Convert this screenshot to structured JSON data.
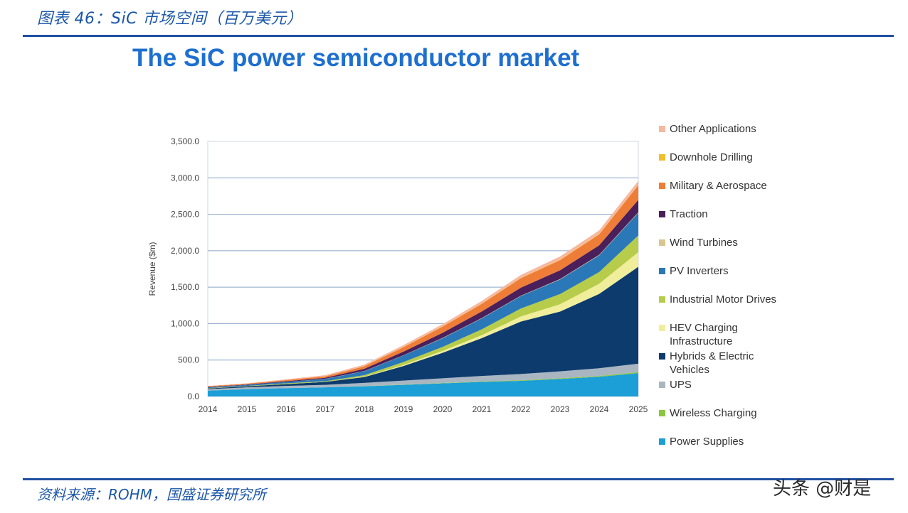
{
  "caption": "图表 46：SiC 市场空间（百万美元）",
  "source": "资料来源：ROHM，国盛证券研究所",
  "watermark": "头条 @财是",
  "chart_data": {
    "type": "area",
    "stacked": true,
    "title": "The SiC power semiconductor market",
    "xlabel": "",
    "ylabel": "Revenue ($m)",
    "x": [
      "2014",
      "2015",
      "2016",
      "2017",
      "2018",
      "2019",
      "2020",
      "2021",
      "2022",
      "2023",
      "2024",
      "2025"
    ],
    "ylim": [
      0,
      3500
    ],
    "yticks": [
      "0.0",
      "500.0",
      "1,000.0",
      "1,500.0",
      "2,000.0",
      "2,500.0",
      "3,000.0",
      "3,500.0"
    ],
    "grid": "horizontal",
    "legend_position": "right",
    "series": [
      {
        "name": "Power Supplies",
        "color": "#1b9fd6",
        "values": [
          80,
          100,
          115,
          125,
          140,
          160,
          180,
          200,
          215,
          240,
          270,
          320
        ]
      },
      {
        "name": "Wireless Charging",
        "color": "#8dc63f",
        "values": [
          0,
          0,
          0,
          0,
          2,
          3,
          5,
          6,
          8,
          10,
          12,
          15
        ]
      },
      {
        "name": "UPS",
        "color": "#a9b6c2",
        "values": [
          20,
          25,
          30,
          35,
          45,
          55,
          65,
          75,
          85,
          95,
          105,
          115
        ]
      },
      {
        "name": "Hybrids & Electric Vehicles",
        "color": "#0d3b6e",
        "values": [
          10,
          15,
          25,
          40,
          80,
          200,
          350,
          520,
          720,
          820,
          1020,
          1330
        ]
      },
      {
        "name": "HEV Charging Infrastructure",
        "color": "#f0ee9a",
        "values": [
          0,
          0,
          0,
          0,
          5,
          15,
          25,
          40,
          70,
          100,
          140,
          200
        ]
      },
      {
        "name": "Industrial Motor Drives",
        "color": "#b7cc4a",
        "values": [
          5,
          5,
          10,
          10,
          20,
          40,
          55,
          80,
          110,
          140,
          160,
          230
        ]
      },
      {
        "name": "PV Inverters",
        "color": "#2a78b8",
        "values": [
          10,
          15,
          20,
          30,
          55,
          90,
          120,
          150,
          170,
          200,
          230,
          310
        ]
      },
      {
        "name": "Wind Turbines",
        "color": "#d8c690",
        "values": [
          0,
          0,
          0,
          2,
          3,
          3,
          4,
          5,
          5,
          6,
          7,
          8
        ]
      },
      {
        "name": "Traction",
        "color": "#4a1f5a",
        "values": [
          5,
          5,
          10,
          15,
          30,
          50,
          70,
          90,
          110,
          120,
          130,
          170
        ]
      },
      {
        "name": "Military & Aerospace",
        "color": "#ee7d37",
        "values": [
          10,
          10,
          15,
          20,
          35,
          60,
          85,
          105,
          130,
          140,
          150,
          200
        ]
      },
      {
        "name": "Downhole Drilling",
        "color": "#f0bf2a",
        "values": [
          0,
          0,
          0,
          0,
          2,
          3,
          3,
          4,
          4,
          5,
          5,
          6
        ]
      },
      {
        "name": "Other Applications",
        "color": "#f7b8a0",
        "values": [
          5,
          5,
          10,
          15,
          20,
          25,
          30,
          35,
          40,
          45,
          50,
          55
        ]
      }
    ]
  }
}
